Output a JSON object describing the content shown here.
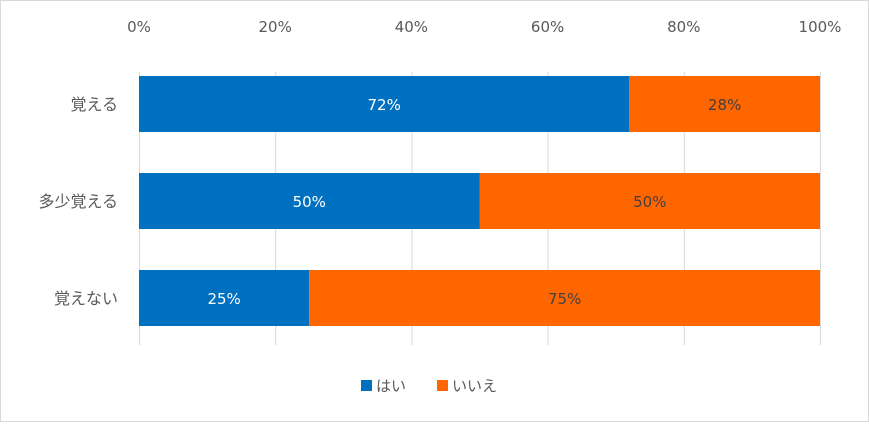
{
  "chart_data": {
    "type": "bar",
    "orientation": "horizontal",
    "stacked": "percent",
    "categories": [
      "覚える",
      "多少覚える",
      "覚えない"
    ],
    "series": [
      {
        "name": "はい",
        "values": [
          72,
          50,
          25
        ],
        "color": "#0070C0",
        "data_labels": [
          "72%",
          "50%",
          "25%"
        ]
      },
      {
        "name": "いいえ",
        "values": [
          28,
          50,
          75
        ],
        "color": "#FF6600",
        "data_labels": [
          "28%",
          "50%",
          "75%"
        ]
      }
    ],
    "x_ticks": [
      0,
      20,
      40,
      60,
      80,
      100
    ],
    "x_tick_labels": [
      "0%",
      "20%",
      "40%",
      "60%",
      "80%",
      "100%"
    ],
    "xlim": [
      0,
      100
    ],
    "x_axis_position": "top",
    "grid": true,
    "legend": "bottom",
    "title": "",
    "xlabel": "",
    "ylabel": ""
  }
}
